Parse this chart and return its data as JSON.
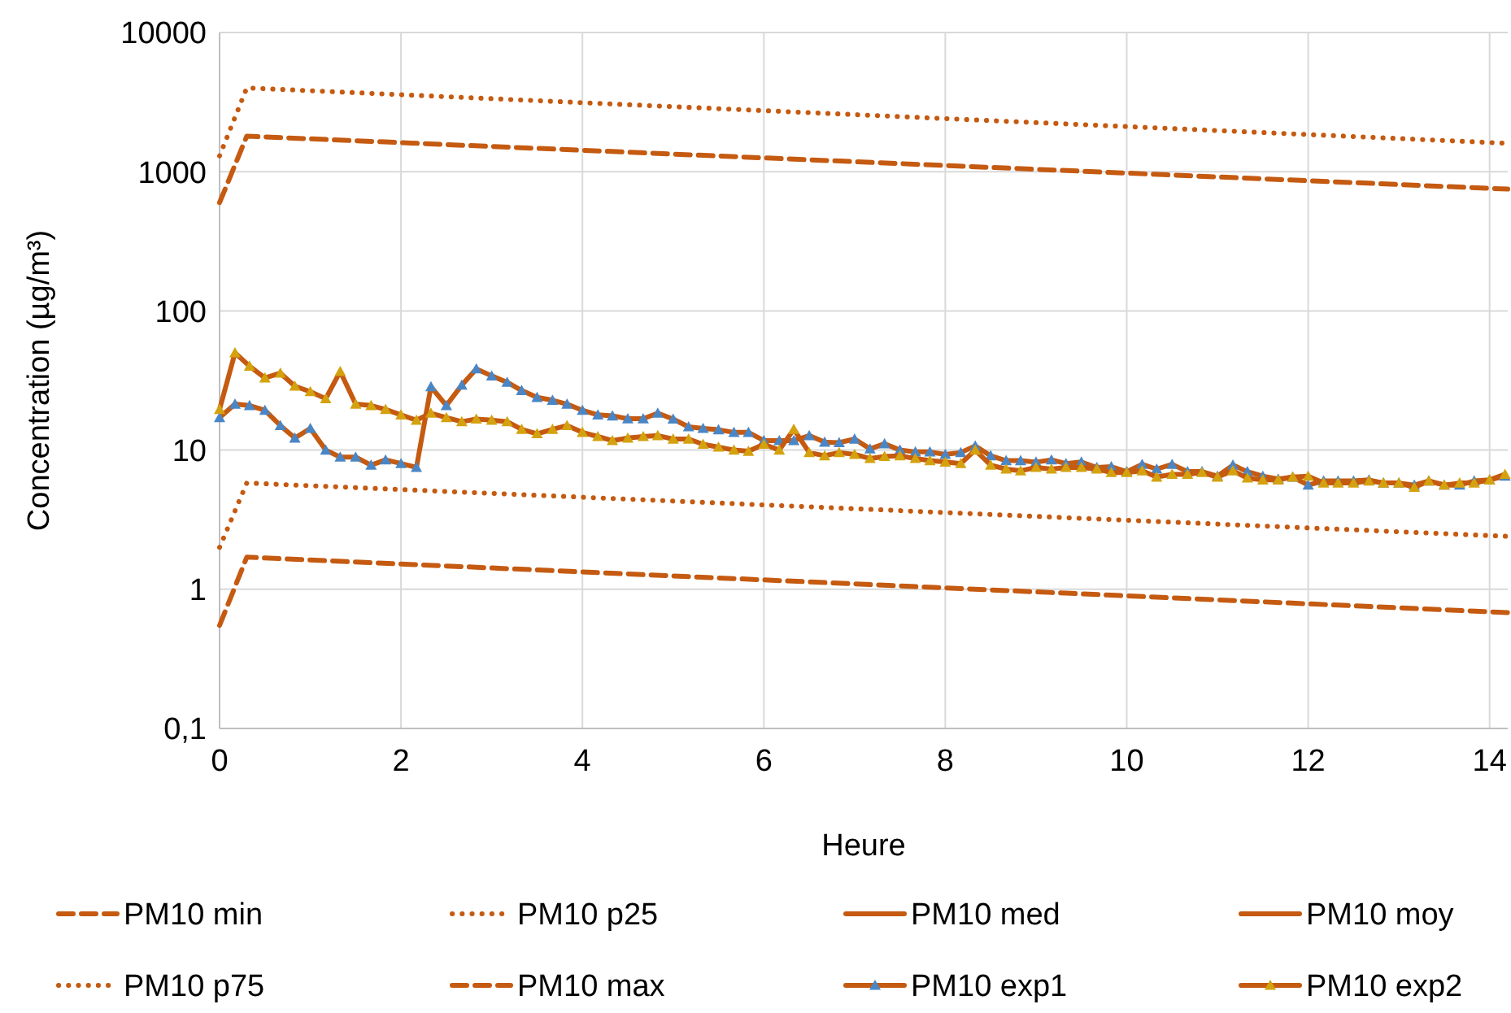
{
  "chart_data": {
    "type": "line",
    "xlabel": "Heure",
    "ylabel": "Concentration (µg/m³)",
    "log": "y",
    "grid": true,
    "legend": "bottom",
    "xlim": [
      0,
      14.2
    ],
    "xticks": [
      0,
      2,
      4,
      6,
      8,
      10,
      12,
      14
    ],
    "ylim": [
      0.1,
      10000
    ],
    "yticks": [
      {
        "value": 0.1,
        "label": "0,1"
      },
      1,
      10,
      100,
      1000,
      10000
    ],
    "series": [
      {
        "name": "PM10 min",
        "color": "#c55a11",
        "line_style": "dashed",
        "marker": "none",
        "x": [
          0,
          0.3,
          14.2
        ],
        "values": [
          0.55,
          1.7,
          0.68
        ]
      },
      {
        "name": "PM10 p25",
        "color": "#c55a11",
        "line_style": "dotted",
        "marker": "none",
        "x": [
          0,
          0.3,
          14.2
        ],
        "values": [
          2,
          5.8,
          2.4
        ]
      },
      {
        "name": "PM10 med",
        "color": "#c55a11",
        "line_style": "solid",
        "marker": "none"
      },
      {
        "name": "PM10 moy",
        "color": "#c55a11",
        "line_style": "solid",
        "marker": "none"
      },
      {
        "name": "PM10 p75",
        "color": "#c55a11",
        "line_style": "dotted",
        "marker": "none",
        "x": [
          0,
          0.3,
          14.2
        ],
        "values": [
          1300,
          4000,
          1600
        ]
      },
      {
        "name": "PM10 max",
        "color": "#c55a11",
        "line_style": "dashed",
        "marker": "none",
        "x": [
          0,
          0.3,
          14.2
        ],
        "values": [
          600,
          1800,
          750
        ]
      },
      {
        "name": "PM10 exp1",
        "color": "#c55a11",
        "line_style": "solid",
        "marker": "triangle",
        "colors": [
          "#4a86c5",
          "#4a86c5",
          "#4a86c5",
          "#4a86c5",
          "#4a86c5",
          "#4a86c5",
          "#4a86c5",
          "#4a86c5",
          "#4a86c5",
          "#4a86c5",
          "#4a86c5",
          "#4a86c5",
          "#4a86c5",
          "#4a86c5",
          "#4a86c5",
          "#4a86c5",
          "#4a86c5",
          "#4a86c5",
          "#4a86c5",
          "#4a86c5",
          "#4a86c5",
          "#4a86c5",
          "#4a86c5",
          "#4a86c5",
          "#4a86c5",
          "#4a86c5",
          "#4a86c5",
          "#4a86c5",
          "#4a86c5",
          "#4a86c5",
          "#4a86c5",
          "#4a86c5",
          "#4a86c5",
          "#4a86c5",
          "#4a86c5",
          "#4a86c5",
          "#4a86c5",
          "#4a86c5",
          "#4a86c5",
          "#4a86c5",
          "#4a86c5",
          "#4a86c5",
          "#4a86c5",
          "#4a86c5",
          "#4a86c5",
          "#4a86c5",
          "#4a86c5",
          "#4a86c5",
          "#4a86c5",
          "#4a86c5",
          "#4a86c5",
          "#4a86c5",
          "#4a86c5",
          "#4a86c5",
          "#4a86c5",
          "#4a86c5",
          "#4a86c5",
          "#4a86c5",
          "#4a86c5",
          "#4a86c5",
          "#4a86c5",
          "#4a86c5",
          "#4a86c5",
          "#4a86c5",
          "#4a86c5",
          "#4a86c5",
          "#4a86c5",
          "#4a86c5",
          "#4a86c5",
          "#4a86c5",
          "#4a86c5",
          "#4a86c5",
          "#4a86c5",
          "#4a86c5",
          "#4a86c5",
          "#4a86c5",
          "#4a86c5",
          "#4a86c5",
          "#4a86c5",
          "#4a86c5",
          "#4a86c5",
          "#4a86c5",
          "#4a86c5",
          "#4a86c5",
          "#4a86c5",
          "#4a86c5"
        ],
        "x": [
          0,
          0.17,
          0.33,
          0.5,
          0.67,
          0.83,
          1,
          1.17,
          1.33,
          1.5,
          1.67,
          1.83,
          2,
          2.17,
          2.33,
          2.5,
          2.67,
          2.83,
          3,
          3.17,
          3.33,
          3.5,
          3.67,
          3.83,
          4,
          4.17,
          4.33,
          4.5,
          4.67,
          4.83,
          5,
          5.17,
          5.33,
          5.5,
          5.67,
          5.83,
          6,
          6.17,
          6.33,
          6.5,
          6.67,
          6.83,
          7,
          7.17,
          7.33,
          7.5,
          7.67,
          7.83,
          8,
          8.17,
          8.33,
          8.5,
          8.67,
          8.83,
          9,
          9.17,
          9.33,
          9.5,
          9.67,
          9.83,
          10,
          10.17,
          10.33,
          10.5,
          10.67,
          10.83,
          11,
          11.17,
          11.33,
          11.5,
          11.67,
          11.83,
          12,
          12.17,
          12.33,
          12.5,
          12.67,
          12.83,
          13,
          13.17,
          13.33,
          13.5,
          13.67,
          13.83,
          14,
          14.17
        ],
        "values": [
          17.1,
          21.4,
          20.9,
          19.3,
          15,
          12.2,
          14.3,
          10,
          8.9,
          8.9,
          7.8,
          8.5,
          8,
          7.5,
          28.5,
          20.9,
          29.3,
          38.3,
          34.1,
          30.7,
          26.8,
          23.9,
          22.8,
          21.4,
          19.3,
          17.9,
          17.6,
          16.8,
          16.8,
          18.4,
          16.7,
          14.7,
          14.3,
          14,
          13.4,
          13.4,
          11.7,
          11.7,
          11.7,
          12.7,
          11.4,
          11.3,
          12,
          10.2,
          11.1,
          10,
          9.7,
          9.7,
          9.3,
          9.6,
          10.7,
          9.1,
          8.4,
          8.4,
          8.2,
          8.5,
          8,
          8.2,
          7.5,
          7.6,
          7,
          7.9,
          7.3,
          7.9,
          7,
          7,
          6.5,
          7.8,
          7,
          6.5,
          6.2,
          6.4,
          5.6,
          6,
          6,
          6,
          6.1,
          5.8,
          5.8,
          5.6,
          6,
          5.6,
          5.6,
          6,
          6.1,
          6.5
        ]
      },
      {
        "name": "PM10 exp2",
        "color": "#c55a11",
        "line_style": "solid",
        "marker": "triangle",
        "colors": [
          "#d4a20f",
          "#d4a20f",
          "#d4a20f",
          "#d4a20f",
          "#d4a20f",
          "#d4a20f",
          "#d4a20f",
          "#d4a20f",
          "#d4a20f",
          "#d4a20f",
          "#d4a20f",
          "#d4a20f",
          "#d4a20f",
          "#d4a20f",
          "#d4a20f",
          "#d4a20f",
          "#d4a20f",
          "#d4a20f",
          "#d4a20f",
          "#d4a20f",
          "#d4a20f",
          "#d4a20f",
          "#d4a20f",
          "#d4a20f",
          "#d4a20f",
          "#d4a20f",
          "#d4a20f",
          "#d4a20f",
          "#d4a20f",
          "#d4a20f",
          "#d4a20f",
          "#d4a20f",
          "#d4a20f",
          "#d4a20f",
          "#d4a20f",
          "#d4a20f",
          "#d4a20f",
          "#d4a20f",
          "#d4a20f",
          "#d4a20f",
          "#d4a20f",
          "#d4a20f",
          "#d4a20f",
          "#d4a20f",
          "#d4a20f",
          "#d4a20f",
          "#d4a20f",
          "#d4a20f",
          "#d4a20f",
          "#d4a20f",
          "#d4a20f",
          "#d4a20f",
          "#d4a20f",
          "#d4a20f",
          "#d4a20f",
          "#d4a20f",
          "#d4a20f",
          "#d4a20f",
          "#d4a20f",
          "#d4a20f",
          "#d4a20f",
          "#d4a20f",
          "#d4a20f",
          "#d4a20f",
          "#d4a20f",
          "#d4a20f",
          "#d4a20f",
          "#d4a20f",
          "#d4a20f",
          "#d4a20f",
          "#d4a20f",
          "#d4a20f",
          "#d4a20f",
          "#d4a20f",
          "#d4a20f",
          "#d4a20f",
          "#d4a20f",
          "#d4a20f",
          "#d4a20f",
          "#d4a20f",
          "#d4a20f",
          "#d4a20f",
          "#d4a20f",
          "#d4a20f",
          "#d4a20f",
          "#d4a20f"
        ],
        "x": [
          0,
          0.17,
          0.33,
          0.5,
          0.67,
          0.83,
          1,
          1.17,
          1.33,
          1.5,
          1.67,
          1.83,
          2,
          2.17,
          2.33,
          2.5,
          2.67,
          2.83,
          3,
          3.17,
          3.33,
          3.5,
          3.67,
          3.83,
          4,
          4.17,
          4.33,
          4.5,
          4.67,
          4.83,
          5,
          5.17,
          5.33,
          5.5,
          5.67,
          5.83,
          6,
          6.17,
          6.33,
          6.5,
          6.67,
          6.83,
          7,
          7.17,
          7.33,
          7.5,
          7.67,
          7.83,
          8,
          8.17,
          8.33,
          8.5,
          8.67,
          8.83,
          9,
          9.17,
          9.33,
          9.5,
          9.67,
          9.83,
          10,
          10.17,
          10.33,
          10.5,
          10.67,
          10.83,
          11,
          11.17,
          11.33,
          11.5,
          11.67,
          11.83,
          12,
          12.17,
          12.33,
          12.5,
          12.67,
          12.83,
          13,
          13.17,
          13.33,
          13.5,
          13.67,
          13.83,
          14,
          14.17
        ],
        "values": [
          19.6,
          50,
          40.1,
          33,
          35.7,
          28.8,
          26.3,
          23.4,
          36.7,
          21.4,
          20.9,
          19.6,
          17.9,
          16.4,
          18.4,
          17.1,
          16,
          16.7,
          16.4,
          16,
          14.1,
          13.1,
          14.1,
          15,
          13.4,
          12.5,
          11.7,
          12.2,
          12.5,
          12.7,
          12,
          12,
          11,
          10.5,
          10,
          9.8,
          11,
          10,
          14.1,
          9.6,
          9.1,
          9.6,
          9.3,
          8.7,
          9,
          9.1,
          8.7,
          8.4,
          8.2,
          8,
          10,
          7.8,
          7.3,
          7.1,
          7.5,
          7.3,
          7.5,
          7.5,
          7.3,
          6.9,
          6.9,
          7.1,
          6.4,
          6.7,
          6.7,
          6.9,
          6.4,
          7.1,
          6.3,
          6.1,
          6.1,
          6.4,
          6.5,
          5.8,
          5.8,
          5.8,
          6,
          5.8,
          5.8,
          5.4,
          6,
          5.6,
          5.8,
          5.8,
          6.1,
          6.7
        ]
      }
    ]
  }
}
